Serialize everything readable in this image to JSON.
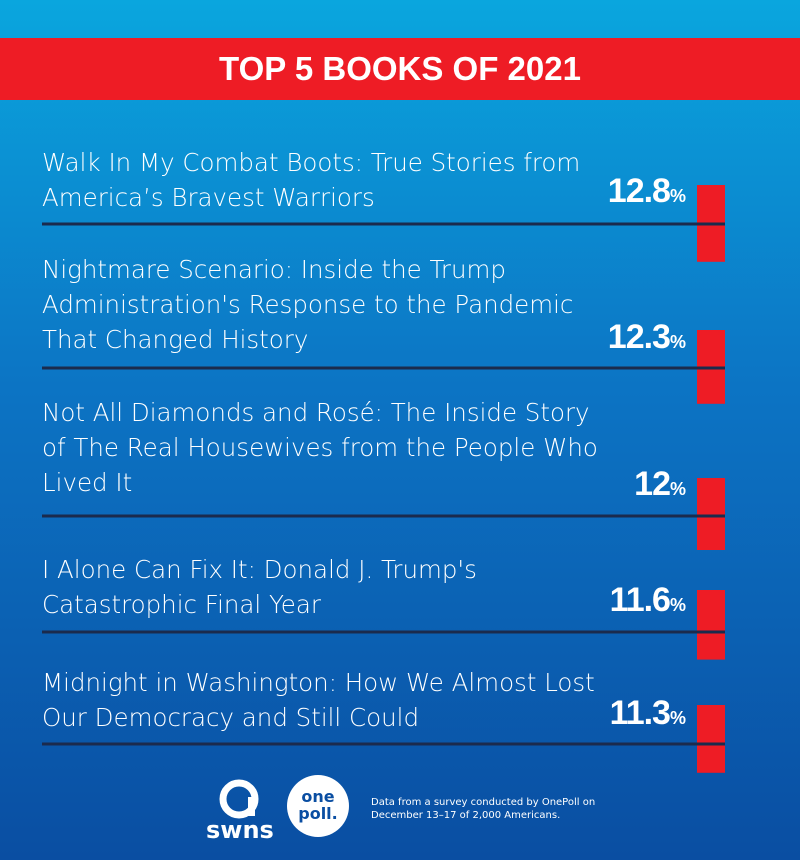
{
  "chart_data": {
    "type": "bar",
    "title": "TOP 5 BOOKS OF 2021",
    "categories": [
      "Walk In My Combat Boots: True Stories from America’s Bravest Warriors",
      "Nightmare Scenario: Inside the Trump Administration's Response to the Pandemic That Changed History",
      "Not All Diamonds and Rosé: The Inside Story of The Real Housewives from the People Who Lived It",
      "I Alone Can Fix It: Donald J. Trump's Catastrophic Final Year",
      "Midnight in Washington: How We Almost Lost Our Democracy and Still Could"
    ],
    "values": [
      12.8,
      12.3,
      12,
      11.6,
      11.3
    ],
    "value_labels": [
      "12.8%",
      "12.3%",
      "12%",
      "11.6%",
      "11.3%"
    ],
    "color": "#ee1c25"
  },
  "footer": {
    "logo_1": "swns",
    "logo_2": "one poll.",
    "source": "Data from a survey conducted by OnePoll on December 13–17 of 2,000 Americans."
  }
}
